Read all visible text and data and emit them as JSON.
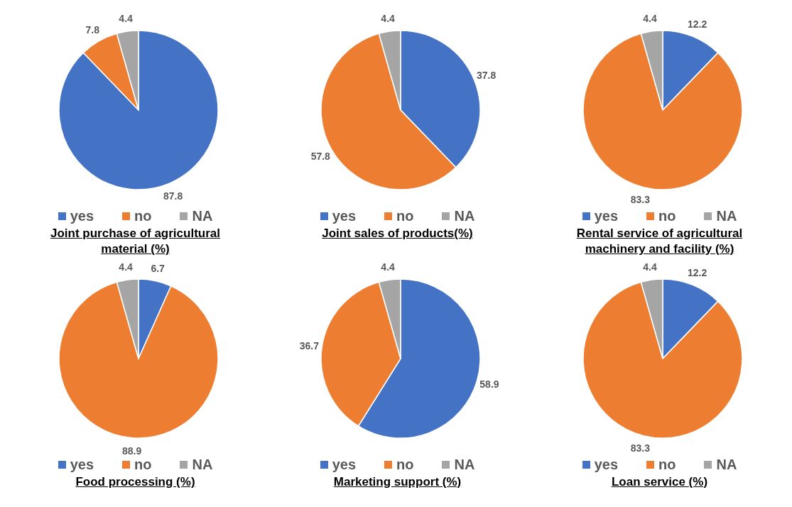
{
  "chart_data": [
    {
      "type": "pie",
      "title": "Joint purchase of agricultural material (%)",
      "categories": [
        "yes",
        "no",
        "NA"
      ],
      "values": [
        87.8,
        7.8,
        4.4
      ],
      "colors": [
        "#4472c4",
        "#ed7d31",
        "#a5a5a5"
      ],
      "data_labels": true,
      "legend": "bottom"
    },
    {
      "type": "pie",
      "title": "Joint sales of products(%)",
      "categories": [
        "yes",
        "no",
        "NA"
      ],
      "values": [
        37.8,
        57.8,
        4.4
      ],
      "colors": [
        "#4472c4",
        "#ed7d31",
        "#a5a5a5"
      ],
      "data_labels": true,
      "legend": "bottom"
    },
    {
      "type": "pie",
      "title": "Rental service of agricultural machinery and facility (%)",
      "categories": [
        "yes",
        "no",
        "NA"
      ],
      "values": [
        12.2,
        83.3,
        4.4
      ],
      "colors": [
        "#4472c4",
        "#ed7d31",
        "#a5a5a5"
      ],
      "data_labels": true,
      "legend": "bottom"
    },
    {
      "type": "pie",
      "title": "Food processing (%)",
      "categories": [
        "yes",
        "no",
        "NA"
      ],
      "values": [
        6.7,
        88.9,
        4.4
      ],
      "colors": [
        "#4472c4",
        "#ed7d31",
        "#a5a5a5"
      ],
      "data_labels": true,
      "legend": "bottom"
    },
    {
      "type": "pie",
      "title": "Marketing support (%)",
      "categories": [
        "yes",
        "no",
        "NA"
      ],
      "values": [
        58.9,
        36.7,
        4.4
      ],
      "colors": [
        "#4472c4",
        "#ed7d31",
        "#a5a5a5"
      ],
      "data_labels": true,
      "legend": "bottom"
    },
    {
      "type": "pie",
      "title": "Loan service (%)",
      "categories": [
        "yes",
        "no",
        "NA"
      ],
      "values": [
        12.2,
        83.3,
        4.4
      ],
      "colors": [
        "#4472c4",
        "#ed7d31",
        "#a5a5a5"
      ],
      "data_labels": true,
      "legend": "bottom"
    }
  ]
}
